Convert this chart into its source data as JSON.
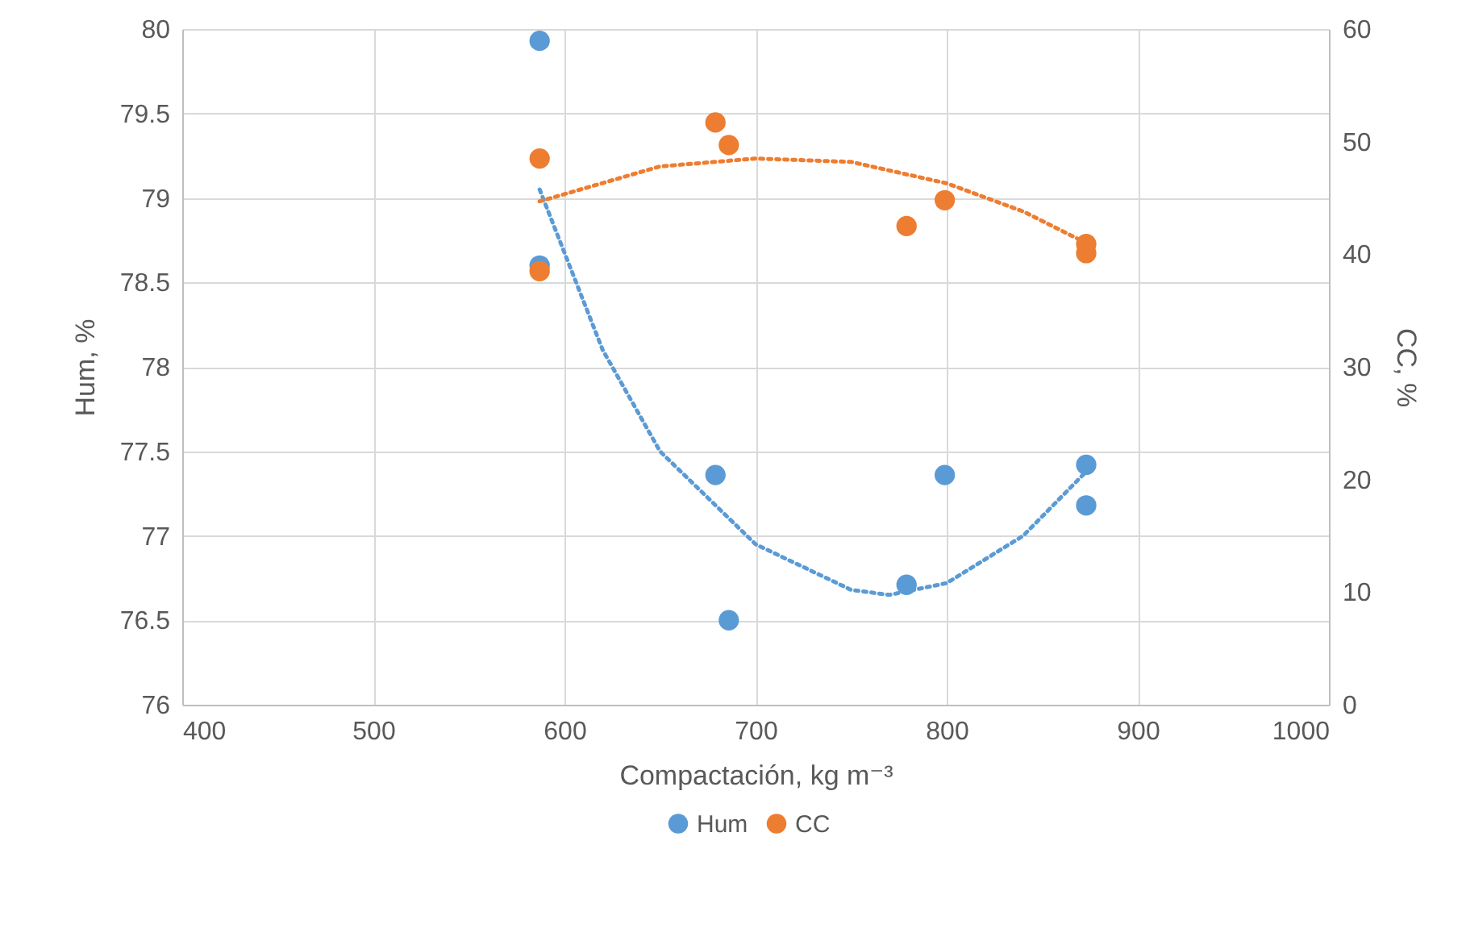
{
  "chart_data": {
    "type": "scatter",
    "xlabel": "Compactación, kg m⁻³",
    "ylabel": "Hum, %",
    "y2label": "CC, %",
    "xlim": [
      400,
      1000
    ],
    "xticks": [
      400,
      500,
      600,
      700,
      800,
      900,
      1000
    ],
    "ylim": [
      76,
      80
    ],
    "yticks": [
      76,
      76.5,
      77,
      77.5,
      78,
      78.5,
      79,
      79.5,
      80
    ],
    "y2lim": [
      0,
      60
    ],
    "y2ticks": [
      0,
      10,
      20,
      30,
      40,
      50,
      60
    ],
    "grid": true,
    "legend": "bottom",
    "marker": "circle",
    "series": [
      {
        "name": "Hum",
        "color": "#5b9bd5",
        "x": [
          587,
          587,
          679,
          686,
          779,
          799,
          873,
          873
        ],
        "values": [
          79.93,
          78.6,
          77.36,
          76.5,
          76.71,
          77.36,
          77.42,
          77.18
        ]
      },
      {
        "name": "CC",
        "color": "#ed7d31",
        "axis": "y2",
        "x": [
          587,
          587,
          679,
          686,
          779,
          799,
          873,
          873
        ],
        "values": [
          48.5,
          38.5,
          51.7,
          49.7,
          42.5,
          44.8,
          40.9,
          40.1
        ]
      },
      {
        "type": "line",
        "color": "#5b9bd5",
        "line_style": "dotted",
        "marker": "none",
        "x": [
          587,
          620,
          650,
          700,
          750,
          770,
          800,
          840,
          873
        ],
        "values": [
          79.05,
          78.1,
          77.5,
          76.95,
          76.68,
          76.65,
          76.72,
          77.0,
          77.38
        ]
      },
      {
        "type": "line",
        "color": "#ed7d31",
        "line_style": "dotted",
        "marker": "none",
        "axis": "y2",
        "x": [
          587,
          650,
          700,
          750,
          800,
          840,
          873
        ],
        "values": [
          44.7,
          47.8,
          48.5,
          48.2,
          46.3,
          43.8,
          41.0
        ]
      }
    ]
  }
}
